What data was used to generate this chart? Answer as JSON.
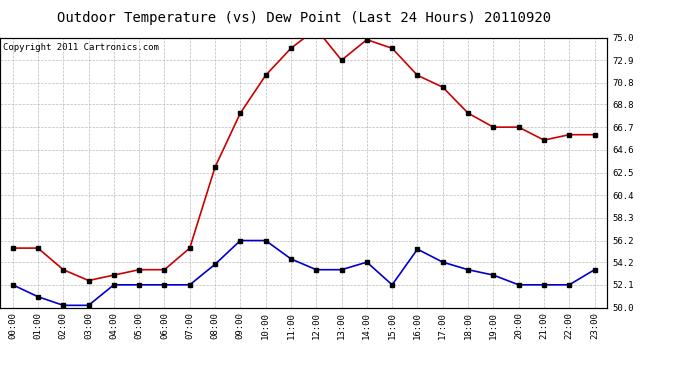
{
  "title": "Outdoor Temperature (vs) Dew Point (Last 24 Hours) 20110920",
  "copyright_text": "Copyright 2011 Cartronics.com",
  "hours": [
    "00:00",
    "01:00",
    "02:00",
    "03:00",
    "04:00",
    "05:00",
    "06:00",
    "07:00",
    "08:00",
    "09:00",
    "10:00",
    "11:00",
    "12:00",
    "13:00",
    "14:00",
    "15:00",
    "16:00",
    "17:00",
    "18:00",
    "19:00",
    "20:00",
    "21:00",
    "22:00",
    "23:00"
  ],
  "temp": [
    55.5,
    55.5,
    53.5,
    52.5,
    53.0,
    53.5,
    53.5,
    55.5,
    63.0,
    68.0,
    71.5,
    74.0,
    75.8,
    72.9,
    74.8,
    74.0,
    71.5,
    70.4,
    68.0,
    66.7,
    66.7,
    65.5,
    66.0,
    66.0
  ],
  "dew": [
    52.1,
    51.0,
    50.2,
    50.2,
    52.1,
    52.1,
    52.1,
    52.1,
    54.0,
    56.2,
    56.2,
    54.5,
    53.5,
    53.5,
    54.2,
    52.1,
    55.4,
    54.2,
    53.5,
    53.0,
    52.1,
    52.1,
    52.1,
    53.5
  ],
  "temp_color": "#cc0000",
  "dew_color": "#0000cc",
  "bg_color": "#ffffff",
  "grid_color": "#bbbbbb",
  "ylim": [
    50.0,
    75.0
  ],
  "yticks": [
    50.0,
    52.1,
    54.2,
    56.2,
    58.3,
    60.4,
    62.5,
    64.6,
    66.7,
    68.8,
    70.8,
    72.9,
    75.0
  ],
  "title_fontsize": 10,
  "copyright_fontsize": 6.5,
  "marker": "s",
  "marker_size": 2.5,
  "linewidth": 1.2
}
